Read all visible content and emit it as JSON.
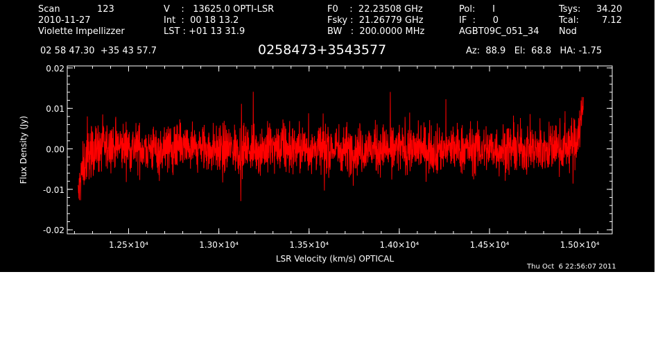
{
  "header": {
    "scan_label": "Scan",
    "scan_value": "123",
    "date": "2010-11-27",
    "observer": "Violette Impellizzer",
    "v_line": "V    :   13625.0 OPTI-LSR",
    "int_line": "Int  :  00 18 13.2",
    "lst_line": "LST : +01 13 31.9",
    "f0_line": "F0    :  22.23508 GHz",
    "fsky_line": "Fsky :  21.26779 GHz",
    "bw_line": "BW   :  200.0000 MHz",
    "pol_line": "Pol:      I",
    "if_line": "IF  :      0",
    "project": "AGBT09C_051_34",
    "tsys_label": "Tsys:",
    "tsys_value": "34.20",
    "tcal_label": "Tcal:",
    "tcal_value": "7.12",
    "nod": "Nod",
    "coords": "02 58 47.30  +35 43 57.7",
    "source": "0258473+3543577",
    "azel": "Az:  88.9   El:  68.8   HA: -1.75"
  },
  "timestamp": "Thu Oct  6 22:56:07 2011",
  "colors": {
    "background": "#000000",
    "trace": "#ff0000",
    "axes": "#ffffff"
  },
  "chart_data": {
    "type": "line",
    "xlabel": "LSR Velocity (km/s) OPTICAL",
    "ylabel": "Flux Density (Jy)",
    "xlim": [
      12160,
      15180
    ],
    "ylim": [
      -0.021,
      0.0205
    ],
    "x_ticks": [
      12500,
      13000,
      13500,
      14000,
      14500,
      15000
    ],
    "x_tick_labels": [
      "1.25×10⁴",
      "1.30×10⁴",
      "1.35×10⁴",
      "1.40×10⁴",
      "1.45×10⁴",
      "1.50×10⁴"
    ],
    "y_ticks": [
      -0.02,
      -0.01,
      0.0,
      0.01,
      0.02
    ],
    "y_tick_labels": [
      "-0.02",
      "-0.01",
      "0.00",
      "0.01",
      "0.02"
    ],
    "series": [
      {
        "color": "#ff0000",
        "noise_rms_jy": 0.004,
        "x": [
          12220,
          12240,
          12260,
          12300,
          12400,
          12500,
          12600,
          12800,
          13000,
          13200,
          13400,
          13600,
          13800,
          14000,
          14200,
          14400,
          14600,
          14800,
          14950,
          14980,
          15000,
          15020
        ],
        "y": [
          -0.012,
          -0.006,
          -0.003,
          0.0,
          0.0005,
          0.0005,
          0.0,
          0.0,
          0.0,
          0.0,
          0.0,
          0.0,
          0.0,
          0.0,
          0.0,
          0.0,
          0.0,
          0.0,
          0.0008,
          0.002,
          0.006,
          0.01
        ]
      }
    ]
  }
}
